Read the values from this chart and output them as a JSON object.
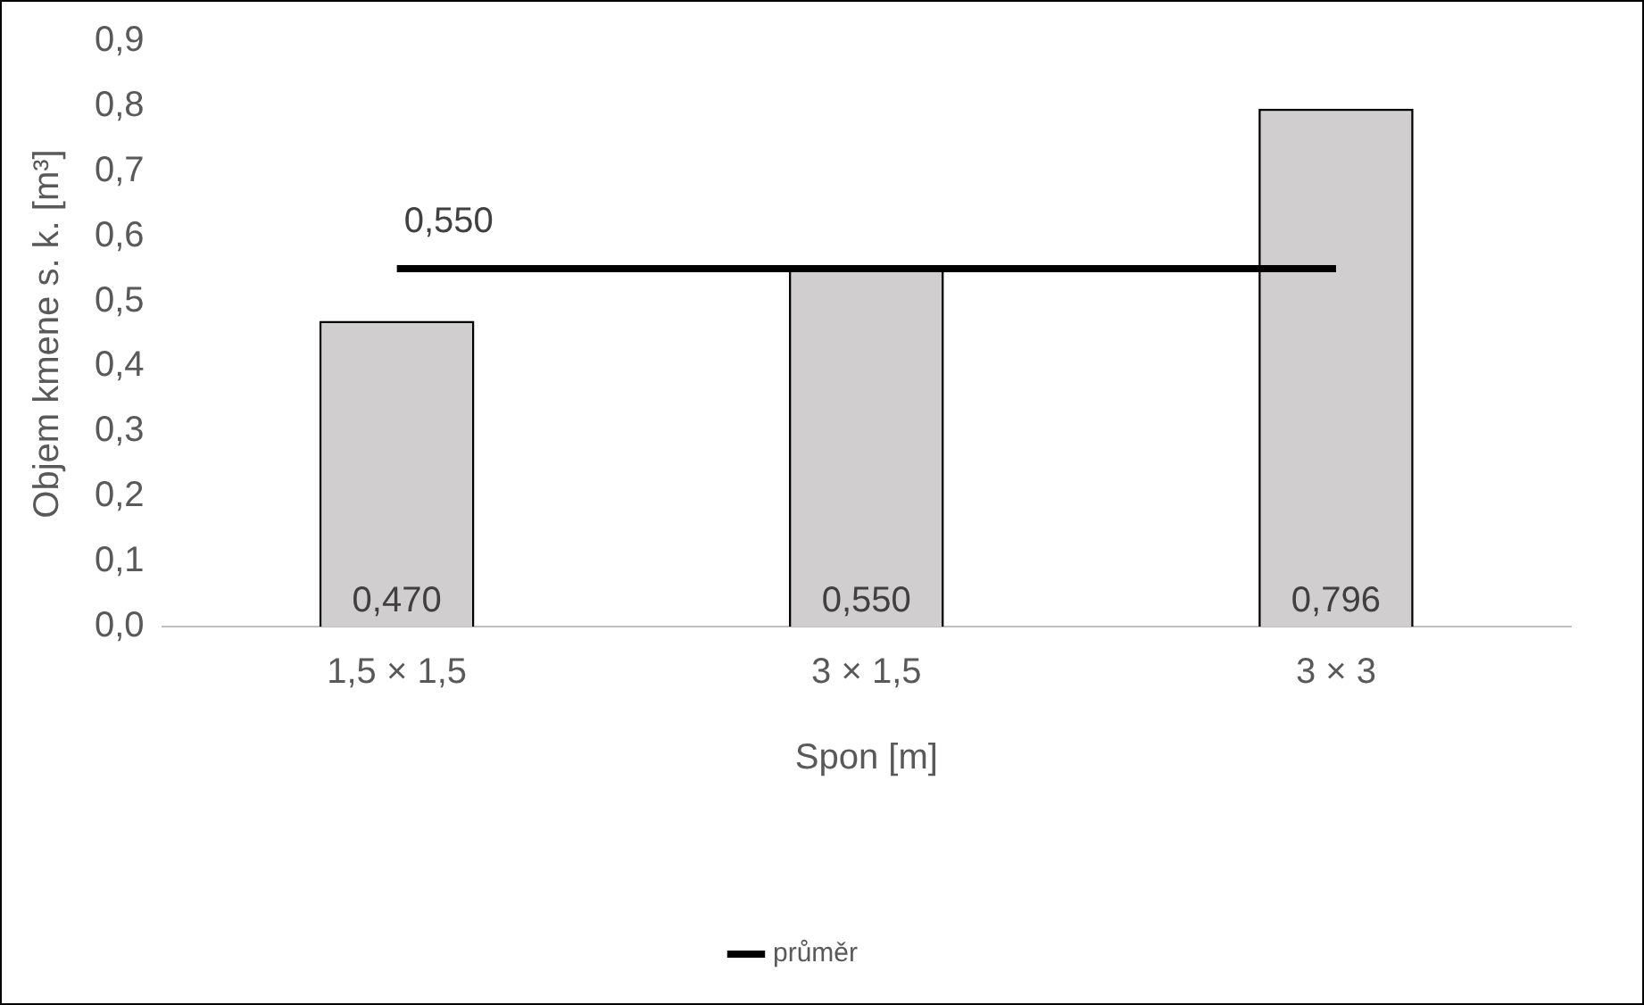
{
  "chart_data": {
    "type": "bar",
    "categories": [
      "1,5 × 1,5",
      "3 × 1,5",
      "3 × 3"
    ],
    "xlabel": "Spon [m]",
    "ylabel": "Objem kmene s. k. [m³]",
    "ylim": [
      0,
      0.9
    ],
    "yticks": [
      {
        "value": 0,
        "label": "0,0"
      },
      {
        "value": 0.1,
        "label": "0,1"
      },
      {
        "value": 0.2,
        "label": "0,2"
      },
      {
        "value": 0.3,
        "label": "0,3"
      },
      {
        "value": 0.4,
        "label": "0,4"
      },
      {
        "value": 0.5,
        "label": "0,5"
      },
      {
        "value": 0.6,
        "label": "0,6"
      },
      {
        "value": 0.7,
        "label": "0,7"
      },
      {
        "value": 0.8,
        "label": "0,8"
      },
      {
        "value": 0.9,
        "label": "0,9"
      }
    ],
    "grid": false,
    "legend": "bottom",
    "series": [
      {
        "color": "#d0cece",
        "values": [
          0.47,
          0.55,
          0.796
        ],
        "value_labels": [
          "0,470",
          "0,550",
          "0,796"
        ]
      },
      {
        "type": "line",
        "name": "průměr",
        "color": "#000000",
        "values": [
          0.55,
          0.55,
          0.55
        ],
        "value_labels": [
          "0,550",
          null,
          null
        ],
        "marker": "none"
      }
    ]
  }
}
